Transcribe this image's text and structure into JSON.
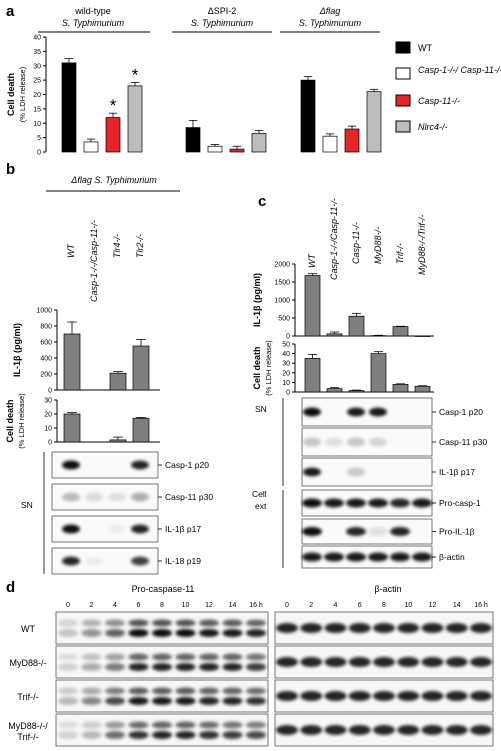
{
  "panels": {
    "a": "a",
    "b": "b",
    "c": "c",
    "d": "d"
  },
  "a": {
    "groups": [
      {
        "line1": "wild-type",
        "line2": "S. Typhimurium"
      },
      {
        "line1": "ΔSPI-2",
        "line2": "S. Typhimurium"
      },
      {
        "line1": "Δflag",
        "line2": "S. Typhimurium"
      }
    ],
    "ylabel1": "Cell death",
    "ylabel2": "(% LDH release)",
    "yticks": [
      "0",
      "5",
      "10",
      "15",
      "20",
      "25",
      "30",
      "35",
      "40"
    ],
    "legend": [
      "WT",
      "Casp-1-/-/ Casp-11-/-",
      "Casp-11-/-",
      "Nlrc4-/-"
    ],
    "star": "*"
  },
  "b": {
    "title": "Δflag S. Typhimurium",
    "columns": [
      "WT",
      "Casp-1-/-/Casp-11-/-",
      "Tlr4-/-",
      "Tlr2-/-"
    ],
    "il1b_ylabel": "IL-1β (pg/ml)",
    "il1b_yticks": [
      "0",
      "200",
      "400",
      "600",
      "800",
      "1000"
    ],
    "cd_ylabel1": "Cell death",
    "cd_ylabel2": "(% LDH release)",
    "cd_yticks": [
      "0",
      "10",
      "20",
      "30"
    ],
    "sn": "SN",
    "bands": [
      "Casp-1 p20",
      "Casp-11 p30",
      "IL-1β p17",
      "IL-18 p19"
    ]
  },
  "c": {
    "columns": [
      "WT",
      "Casp-1-/-/Casp-11-/-",
      "Casp-11-/-",
      "MyD88-/-",
      "Trif-/-",
      "MyD88-/-/Trif-/-"
    ],
    "il1b_ylabel": "IL-1β (pg/ml)",
    "il1b_yticks": [
      "0",
      "500",
      "1000",
      "1500",
      "2000"
    ],
    "cd_ylabel1": "Cell death",
    "cd_ylabel2": "(% LDH release)",
    "cd_yticks": [
      "0",
      "10",
      "20",
      "30",
      "40",
      "50"
    ],
    "sn": "SN",
    "sn_bands": [
      "Casp-1 p20",
      "Casp-11 p30",
      "IL-1β p17"
    ],
    "ext1": "Cell",
    "ext2": "ext",
    "ext_bands": [
      "Pro-casp-1",
      "Pro-IL-1β",
      "β-actin"
    ]
  },
  "d": {
    "title_left": "Pro-caspase-11",
    "title_right": "β-actin",
    "times": [
      "0",
      "2",
      "4",
      "6",
      "8",
      "10",
      "12",
      "14",
      "16 h"
    ],
    "rows": [
      "WT",
      "MyD88-/-",
      "Trif-/-",
      "MyD88-/-/ Trif-/-"
    ]
  },
  "chart_data": [
    {
      "type": "bar",
      "ylabel": "Cell death (% LDH release)",
      "ylim": [
        0,
        40
      ],
      "categories": [
        "wild-type S. Typhimurium",
        "ΔSPI-2 S. Typhimurium",
        "Δflag S. Typhimurium"
      ],
      "series": [
        {
          "name": "WT",
          "values": [
            31,
            8.5,
            25
          ],
          "errors": [
            1.5,
            2.5,
            1.2
          ],
          "color": "#000000"
        },
        {
          "name": "Casp-1-/-/ Casp-11-/-",
          "values": [
            3.5,
            2,
            5.5
          ],
          "errors": [
            1,
            0.6,
            0.8
          ],
          "color": "#ffffff"
        },
        {
          "name": "Casp-11-/-",
          "values": [
            12,
            1,
            8
          ],
          "errors": [
            1.5,
            1,
            1
          ],
          "color": "#e8232a"
        },
        {
          "name": "Nlrc4-/-",
          "values": [
            23,
            6.5,
            21
          ],
          "errors": [
            1.2,
            1,
            0.8
          ],
          "color": "#bdbdbd"
        }
      ]
    },
    {
      "type": "bar",
      "ylabel": "IL-1β (pg/ml)",
      "ylim": [
        0,
        1000
      ],
      "categories": [
        "WT",
        "Casp-1-/-/Casp-11-/-",
        "Tlr4-/-",
        "Tlr2-/-"
      ],
      "values": [
        700,
        0,
        210,
        550
      ],
      "errors": [
        150,
        0,
        20,
        80
      ]
    },
    {
      "type": "bar",
      "ylabel": "Cell death (% LDH release)",
      "ylim": [
        0,
        30
      ],
      "categories": [
        "WT",
        "Casp-1-/-/Casp-11-/-",
        "Tlr4-/-",
        "Tlr2-/-"
      ],
      "values": [
        20,
        0,
        1.5,
        17
      ],
      "errors": [
        1,
        0,
        2,
        0.5
      ]
    },
    {
      "type": "bar",
      "ylabel": "IL-1β (pg/ml)",
      "ylim": [
        0,
        2000
      ],
      "categories": [
        "WT",
        "Casp-1-/-/Casp-11-/-",
        "Casp-11-/-",
        "MyD88-/-",
        "Trif-/-",
        "MyD88-/-/Trif-/-"
      ],
      "values": [
        1680,
        60,
        550,
        10,
        260,
        0
      ],
      "errors": [
        50,
        50,
        80,
        10,
        10,
        0
      ]
    },
    {
      "type": "bar",
      "ylabel": "Cell death (% LDH release)",
      "ylim": [
        0,
        50
      ],
      "categories": [
        "WT",
        "Casp-1-/-/Casp-11-/-",
        "Casp-11-/-",
        "MyD88-/-",
        "Trif-/-",
        "MyD88-/-/Trif-/-"
      ],
      "values": [
        35,
        3.5,
        1.5,
        40,
        8,
        6
      ],
      "errors": [
        4,
        1,
        0.5,
        2,
        0.5,
        0.5
      ]
    }
  ]
}
